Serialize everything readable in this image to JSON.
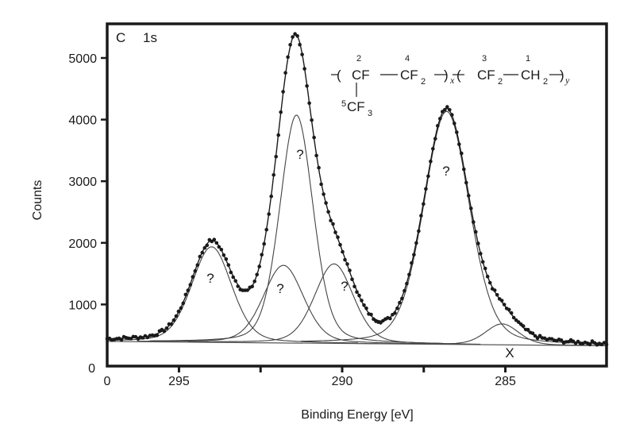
{
  "chart_data": {
    "type": "line",
    "title": "C 1s",
    "title_parts": [
      "C",
      "1s"
    ],
    "xlabel": "Binding Energy [eV]",
    "ylabel": "Counts",
    "xlim": [
      297.2,
      281.9
    ],
    "ylim": [
      0,
      5500
    ],
    "x_reversed": true,
    "grid": false,
    "x_ticks": [
      295,
      292.5,
      290,
      287.5,
      285
    ],
    "x_tick_labels": [
      {
        "value": 297.2,
        "label": "0"
      },
      {
        "value": 295,
        "label": "295"
      },
      {
        "value": 290,
        "label": "290"
      },
      {
        "value": 285,
        "label": "285"
      }
    ],
    "y_ticks": [
      {
        "value": 0,
        "label": "0"
      },
      {
        "value": 1000,
        "label": "1000"
      },
      {
        "value": 2000,
        "label": "2000"
      },
      {
        "value": 3000,
        "label": "3000"
      },
      {
        "value": 4000,
        "label": "4000"
      },
      {
        "value": 5000,
        "label": "5000"
      }
    ],
    "baseline": {
      "start": [
        297.2,
        400
      ],
      "end": [
        281.9,
        330
      ]
    },
    "components": [
      {
        "name": "peak-1",
        "center_eV": 294.0,
        "amplitude": 1550,
        "fwhm": 1.45,
        "label": "?"
      },
      {
        "name": "peak-2",
        "center_eV": 291.8,
        "amplitude": 1260,
        "fwhm": 1.45,
        "label": "?"
      },
      {
        "name": "peak-3",
        "center_eV": 291.4,
        "amplitude": 3700,
        "fwhm": 1.2,
        "label": "?"
      },
      {
        "name": "peak-4",
        "center_eV": 290.25,
        "amplitude": 1290,
        "fwhm": 1.4,
        "label": "?"
      },
      {
        "name": "peak-5",
        "center_eV": 286.8,
        "amplitude": 3780,
        "fwhm": 1.65,
        "label": "?"
      },
      {
        "name": "peak-6",
        "center_eV": 285.1,
        "amplitude": 340,
        "fwhm": 1.2,
        "label": "X"
      }
    ],
    "series": [
      {
        "name": "measured",
        "style": "dots"
      },
      {
        "name": "fit-envelope",
        "style": "line"
      }
    ],
    "annotations": [
      "?",
      "?",
      "?",
      "?",
      "?",
      "X"
    ]
  },
  "formula": {
    "num2": "2",
    "num4": "4",
    "num3": "3",
    "num1": "1",
    "num5": "5",
    "cf": "CF",
    "cf2a": "CF",
    "sub2a": "2",
    "sub_x": "x",
    "cf2b": "CF",
    "sub2b": "2",
    "ch2": "CH",
    "sub2c": "2",
    "sub_y": "y",
    "cf3": "CF",
    "sub3": "3"
  }
}
